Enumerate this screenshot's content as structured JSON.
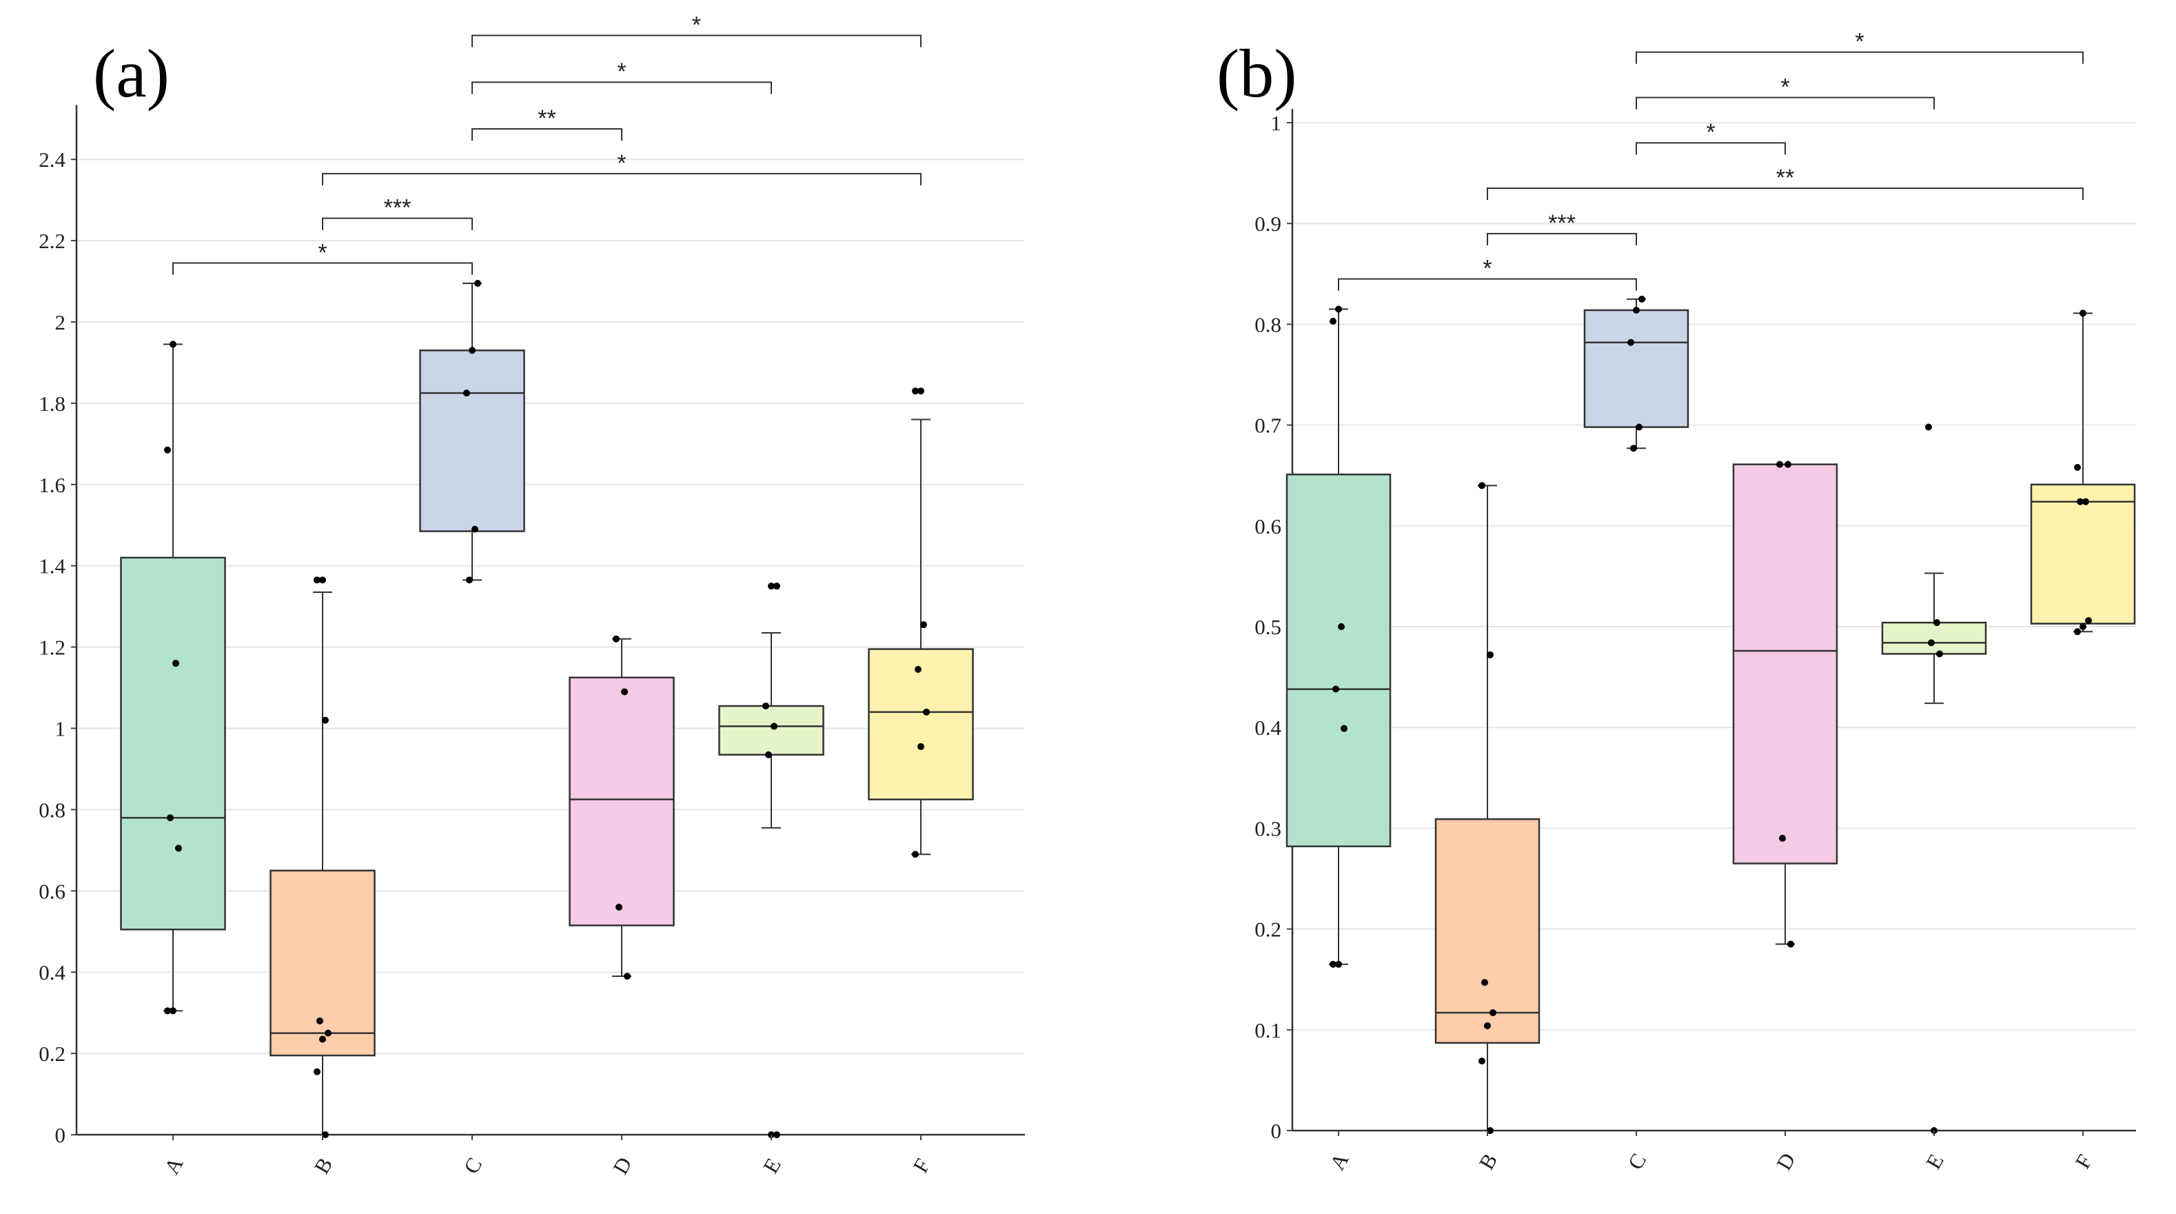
{
  "chart_data": [
    {
      "type": "box",
      "panel_label": "(a)",
      "categories": [
        "A",
        "B",
        "C",
        "D",
        "E",
        "F"
      ],
      "ylim": [
        0,
        2.5
      ],
      "yticks": [
        "0",
        "0.2",
        "0.4",
        "0.6",
        "0.8",
        "1",
        "1.2",
        "1.4",
        "1.6",
        "1.8",
        "2",
        "2.2",
        "2.4"
      ],
      "grid": true,
      "colors": [
        "#b3e2cd",
        "#fdcdac",
        "#cbd5e8",
        "#f4cae4",
        "#e6f5c9",
        "#fff2ae"
      ],
      "boxes": [
        {
          "category": "A",
          "whisker_low": 0.305,
          "q1": 0.505,
          "median": 0.78,
          "q3": 1.42,
          "whisker_high": 1.945,
          "points": [
            0.305,
            0.305,
            0.705,
            0.78,
            1.16,
            1.685,
            1.945
          ],
          "outliers": []
        },
        {
          "category": "B",
          "whisker_low": 0.0,
          "q1": 0.195,
          "median": 0.25,
          "q3": 0.65,
          "whisker_high": 1.335,
          "points": [
            0.0,
            0.155,
            0.235,
            0.25,
            0.28,
            1.02,
            1.365,
            1.365
          ],
          "outliers": [
            1.365
          ]
        },
        {
          "category": "C",
          "whisker_low": 1.365,
          "q1": 1.485,
          "median": 1.825,
          "q3": 1.93,
          "whisker_high": 2.095,
          "points": [
            1.365,
            1.49,
            1.825,
            1.93,
            2.095
          ],
          "outliers": []
        },
        {
          "category": "D",
          "whisker_low": 0.39,
          "q1": 0.515,
          "median": 0.825,
          "q3": 1.125,
          "whisker_high": 1.22,
          "points": [
            0.39,
            0.56,
            1.09,
            1.22
          ],
          "outliers": []
        },
        {
          "category": "E",
          "whisker_low": 0.755,
          "q1": 0.935,
          "median": 1.005,
          "q3": 1.055,
          "whisker_high": 1.235,
          "points": [
            0.0,
            0.0,
            0.935,
            1.005,
            1.055,
            1.35,
            1.35
          ],
          "outliers": [
            0.0,
            1.35
          ]
        },
        {
          "category": "F",
          "whisker_low": 0.69,
          "q1": 0.825,
          "median": 1.04,
          "q3": 1.195,
          "whisker_high": 1.76,
          "points": [
            0.69,
            0.955,
            1.04,
            1.145,
            1.255,
            1.83,
            1.83
          ],
          "outliers": [
            1.83
          ]
        }
      ],
      "significance": [
        {
          "from": "A",
          "to": "C",
          "level": 2.145,
          "label": "*"
        },
        {
          "from": "B",
          "to": "C",
          "level": 2.255,
          "label": "***"
        },
        {
          "from": "B",
          "to": "F",
          "level": 2.365,
          "label": "*"
        },
        {
          "from": "C",
          "to": "D",
          "level": 2.475,
          "label": "**"
        },
        {
          "from": "C",
          "to": "E",
          "level": 2.59,
          "label": "*"
        },
        {
          "from": "C",
          "to": "F",
          "level": 2.705,
          "label": "*"
        }
      ]
    },
    {
      "type": "box",
      "panel_label": "(b)",
      "categories": [
        "A",
        "B",
        "C",
        "D",
        "E",
        "F"
      ],
      "ylim": [
        0,
        1
      ],
      "yticks": [
        "0",
        "0.1",
        "0.2",
        "0.3",
        "0.4",
        "0.5",
        "0.6",
        "0.7",
        "0.8",
        "0.9",
        "1"
      ],
      "grid": true,
      "colors": [
        "#b3e2cd",
        "#fdcdac",
        "#cbd5e8",
        "#f4cae4",
        "#e6f5c9",
        "#fff2ae"
      ],
      "boxes": [
        {
          "category": "A",
          "whisker_low": 0.165,
          "q1": 0.282,
          "median": 0.438,
          "q3": 0.651,
          "whisker_high": 0.815,
          "points": [
            0.165,
            0.165,
            0.399,
            0.438,
            0.5,
            0.803,
            0.815
          ],
          "outliers": []
        },
        {
          "category": "B",
          "whisker_low": 0.0,
          "q1": 0.087,
          "median": 0.117,
          "q3": 0.309,
          "whisker_high": 0.64,
          "points": [
            0.0,
            0.069,
            0.104,
            0.117,
            0.147,
            0.472,
            0.64
          ],
          "outliers": []
        },
        {
          "category": "C",
          "whisker_low": 0.677,
          "q1": 0.698,
          "median": 0.782,
          "q3": 0.814,
          "whisker_high": 0.825,
          "points": [
            0.677,
            0.698,
            0.782,
            0.814,
            0.825
          ],
          "outliers": []
        },
        {
          "category": "D",
          "whisker_low": 0.185,
          "q1": 0.265,
          "median": 0.476,
          "q3": 0.661,
          "whisker_high": 0.661,
          "points": [
            0.185,
            0.29,
            0.661,
            0.661
          ],
          "outliers": []
        },
        {
          "category": "E",
          "whisker_low": 0.424,
          "q1": 0.473,
          "median": 0.484,
          "q3": 0.504,
          "whisker_high": 0.553,
          "points": [
            0.0,
            0.473,
            0.484,
            0.504,
            0.698
          ],
          "outliers": [
            0.0,
            0.698
          ]
        },
        {
          "category": "F",
          "whisker_low": 0.495,
          "q1": 0.503,
          "median": 0.624,
          "q3": 0.641,
          "whisker_high": 0.811,
          "points": [
            0.495,
            0.5,
            0.506,
            0.624,
            0.624,
            0.658,
            0.811
          ],
          "outliers": []
        }
      ],
      "significance": [
        {
          "from": "A",
          "to": "C",
          "level": 0.845,
          "label": "*"
        },
        {
          "from": "B",
          "to": "C",
          "level": 0.89,
          "label": "***"
        },
        {
          "from": "B",
          "to": "F",
          "level": 0.935,
          "label": "**"
        },
        {
          "from": "C",
          "to": "D",
          "level": 0.98,
          "label": "*"
        },
        {
          "from": "C",
          "to": "E",
          "level": 1.025,
          "label": "*"
        },
        {
          "from": "C",
          "to": "F",
          "level": 1.07,
          "label": "*"
        }
      ]
    }
  ]
}
